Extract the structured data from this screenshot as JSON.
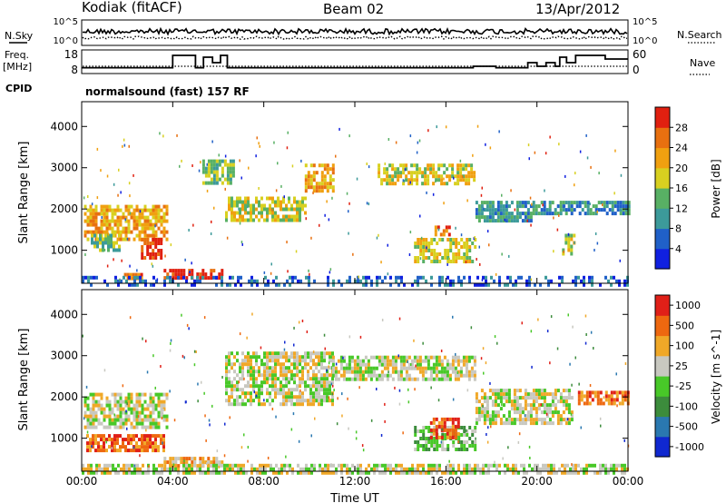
{
  "header": {
    "station": "Kodiak (fitACF)",
    "beam": "Beam 02",
    "date": "13/Apr/2012",
    "mode": "normalsound (fast) 157 RF"
  },
  "side_labels": {
    "nsky": "N.Sky",
    "nsearch": "N.Search",
    "freq": "Freq.",
    "freq_unit": "[MHz]",
    "nave": "Nave",
    "cpid": "CPID"
  },
  "chart_data": [
    {
      "type": "line",
      "panel": "noise",
      "series": [
        {
          "name": "N.Sky"
        },
        {
          "name": "N.Search"
        }
      ],
      "yscale": "log",
      "y_ticks_left": [
        "10^5",
        "10^0"
      ],
      "y_ticks_right": [
        "10^5",
        "10^0"
      ],
      "sky_level": 0.55,
      "search_level": 0.3
    },
    {
      "type": "line",
      "panel": "frequency",
      "series": [
        {
          "name": "Freq."
        },
        {
          "name": "Nave"
        }
      ],
      "y_ticks_left": [
        "18",
        "8"
      ],
      "y_ticks_right": [
        "60",
        "0"
      ],
      "freq_steps": [
        {
          "x0": 0,
          "x1": 4.0,
          "v": 10.2
        },
        {
          "x0": 4.0,
          "x1": 5.0,
          "v": 17
        },
        {
          "x0": 5.0,
          "x1": 5.35,
          "v": 10.2
        },
        {
          "x0": 5.35,
          "x1": 5.75,
          "v": 16
        },
        {
          "x0": 5.75,
          "x1": 6.1,
          "v": 13
        },
        {
          "x0": 6.1,
          "x1": 6.4,
          "v": 17
        },
        {
          "x0": 6.4,
          "x1": 17.2,
          "v": 10.2
        },
        {
          "x0": 17.2,
          "x1": 18.2,
          "v": 11
        },
        {
          "x0": 18.2,
          "x1": 19.6,
          "v": 10.2
        },
        {
          "x0": 19.6,
          "x1": 20.0,
          "v": 13
        },
        {
          "x0": 20.0,
          "x1": 20.4,
          "v": 11
        },
        {
          "x0": 20.4,
          "x1": 20.8,
          "v": 13
        },
        {
          "x0": 20.8,
          "x1": 21.0,
          "v": 11
        },
        {
          "x0": 21.0,
          "x1": 21.3,
          "v": 16
        },
        {
          "x0": 21.3,
          "x1": 21.7,
          "v": 13
        },
        {
          "x0": 21.7,
          "x1": 23.0,
          "v": 17
        },
        {
          "x0": 23.0,
          "x1": 24.0,
          "v": 15
        }
      ]
    },
    {
      "type": "heatmap",
      "panel": "power",
      "title": "",
      "xlabel": "",
      "ylabel": "Slant Range [km]",
      "xlim": [
        0,
        24
      ],
      "ylim": [
        200,
        4600
      ],
      "y_ticks": [
        1000,
        2000,
        3000,
        4000
      ],
      "colorbar_label": "Power [dB]",
      "colorbar_ticks": [
        "4",
        "8",
        "12",
        "16",
        "20",
        "24",
        "28"
      ],
      "colors": [
        "#1020e0",
        "#2060c8",
        "#3c9a9a",
        "#58b064",
        "#d8d020",
        "#f0a010",
        "#e87010",
        "#e02010"
      ],
      "echo_regions": [
        {
          "t0": 0.1,
          "t1": 3.8,
          "r0": 1300,
          "r1": 2100,
          "level": 5
        },
        {
          "t0": 2.6,
          "t1": 3.5,
          "r0": 850,
          "r1": 1300,
          "level": 7
        },
        {
          "t0": 0.4,
          "t1": 1.6,
          "r0": 1000,
          "r1": 1400,
          "level": 3
        },
        {
          "t0": 1.5,
          "t1": 2.6,
          "r0": 350,
          "r1": 450,
          "level": 6
        },
        {
          "t0": 3.6,
          "t1": 6.2,
          "r0": 300,
          "r1": 550,
          "level": 7
        },
        {
          "t0": 6.3,
          "t1": 9.8,
          "r0": 1700,
          "r1": 2300,
          "level": 4
        },
        {
          "t0": 9.8,
          "t1": 11.0,
          "r0": 2400,
          "r1": 3100,
          "level": 5
        },
        {
          "t0": 5.3,
          "t1": 6.7,
          "r0": 2600,
          "r1": 3200,
          "level": 3
        },
        {
          "t0": 13.0,
          "t1": 17.3,
          "r0": 2600,
          "r1": 3100,
          "level": 4
        },
        {
          "t0": 14.6,
          "t1": 17.3,
          "r0": 700,
          "r1": 1300,
          "level": 4
        },
        {
          "t0": 15.5,
          "t1": 16.2,
          "r0": 1400,
          "r1": 1600,
          "level": 6
        },
        {
          "t0": 17.3,
          "t1": 19.8,
          "r0": 1700,
          "r1": 2200,
          "level": 2
        },
        {
          "t0": 19.8,
          "t1": 24.0,
          "r0": 1900,
          "r1": 2200,
          "level": 2
        },
        {
          "t0": 21.1,
          "t1": 21.6,
          "r0": 900,
          "r1": 1400,
          "level": 4
        },
        {
          "t0": 0.0,
          "t1": 24.0,
          "r0": 200,
          "r1": 380,
          "level": 1
        }
      ]
    },
    {
      "type": "heatmap",
      "panel": "velocity",
      "title": "",
      "xlabel": "Time UT",
      "ylabel": "Slant Range [km]",
      "xlim": [
        0,
        24
      ],
      "ylim": [
        200,
        4600
      ],
      "x_ticks": [
        "00:00",
        "04:00",
        "08:00",
        "12:00",
        "16:00",
        "20:00",
        "00:00"
      ],
      "y_ticks": [
        1000,
        2000,
        3000,
        4000
      ],
      "colorbar_label": "Velocity [m s^-1]",
      "colorbar_ticks": [
        "1000",
        "500",
        "100",
        "25",
        "-25",
        "-100",
        "-500",
        "-1000"
      ],
      "colors": [
        "#1028d0",
        "#2a78b0",
        "#3c8c3c",
        "#48c828",
        "#c8c8c0",
        "#f0a828",
        "#ee6810",
        "#e02018"
      ],
      "echo_regions": [
        {
          "t0": 0.1,
          "t1": 3.8,
          "r0": 1300,
          "r1": 2100,
          "level": 4
        },
        {
          "t0": 0.2,
          "t1": 3.6,
          "r0": 700,
          "r1": 1100,
          "level": 6
        },
        {
          "t0": 3.6,
          "t1": 6.2,
          "r0": 300,
          "r1": 550,
          "level": 5
        },
        {
          "t0": 6.3,
          "t1": 11.0,
          "r0": 1800,
          "r1": 3100,
          "level": 4
        },
        {
          "t0": 11.0,
          "t1": 17.3,
          "r0": 2400,
          "r1": 3000,
          "level": 4
        },
        {
          "t0": 14.6,
          "t1": 17.3,
          "r0": 700,
          "r1": 1300,
          "level": 3
        },
        {
          "t0": 15.3,
          "t1": 16.5,
          "r0": 1000,
          "r1": 1500,
          "level": 6
        },
        {
          "t0": 17.3,
          "t1": 21.5,
          "r0": 1400,
          "r1": 2200,
          "level": 4
        },
        {
          "t0": 21.8,
          "t1": 24.0,
          "r0": 1850,
          "r1": 2150,
          "level": 6
        },
        {
          "t0": 0.0,
          "t1": 24.0,
          "r0": 200,
          "r1": 380,
          "level": 4
        }
      ]
    }
  ]
}
